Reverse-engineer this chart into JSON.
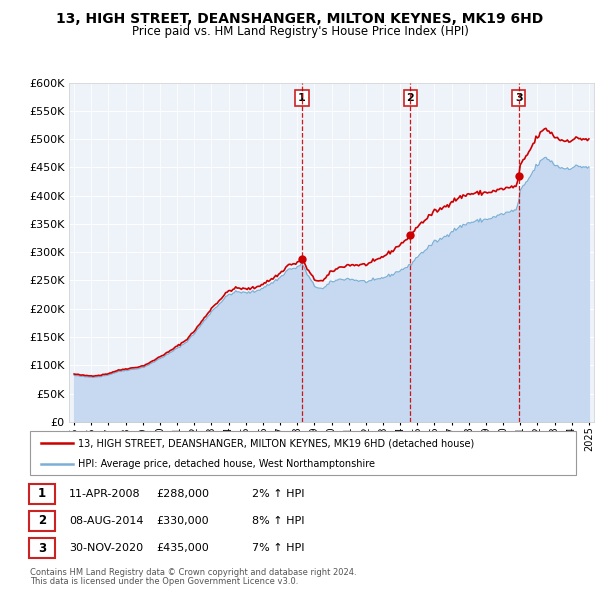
{
  "title": "13, HIGH STREET, DEANSHANGER, MILTON KEYNES, MK19 6HD",
  "subtitle": "Price paid vs. HM Land Registry's House Price Index (HPI)",
  "legend_line1": "13, HIGH STREET, DEANSHANGER, MILTON KEYNES, MK19 6HD (detached house)",
  "legend_line2": "HPI: Average price, detached house, West Northamptonshire",
  "footer1": "Contains HM Land Registry data © Crown copyright and database right 2024.",
  "footer2": "This data is licensed under the Open Government Licence v3.0.",
  "transactions": [
    {
      "num": 1,
      "date": "11-APR-2008",
      "price": "£288,000",
      "hpi": "2% ↑ HPI",
      "year": 2008.283
    },
    {
      "num": 2,
      "date": "08-AUG-2014",
      "price": "£330,000",
      "hpi": "8% ↑ HPI",
      "year": 2014.603
    },
    {
      "num": 3,
      "date": "30-NOV-2020",
      "price": "£435,000",
      "hpi": "7% ↑ HPI",
      "year": 2020.917
    }
  ],
  "price_paid_values": [
    288000,
    330000,
    435000
  ],
  "price_paid_years": [
    2008.283,
    2014.603,
    2020.917
  ],
  "hpi_color": "#c6d9f0",
  "hpi_line_color": "#7bafd4",
  "price_color": "#cc0000",
  "vline_color": "#cc0000",
  "ylim": [
    0,
    600000
  ],
  "xlim_start": 1994.7,
  "xlim_end": 2025.3,
  "ytick_values": [
    0,
    50000,
    100000,
    150000,
    200000,
    250000,
    300000,
    350000,
    400000,
    450000,
    500000,
    550000,
    600000
  ],
  "background_color": "#ffffff",
  "plot_bg_color": "#eef3fa"
}
